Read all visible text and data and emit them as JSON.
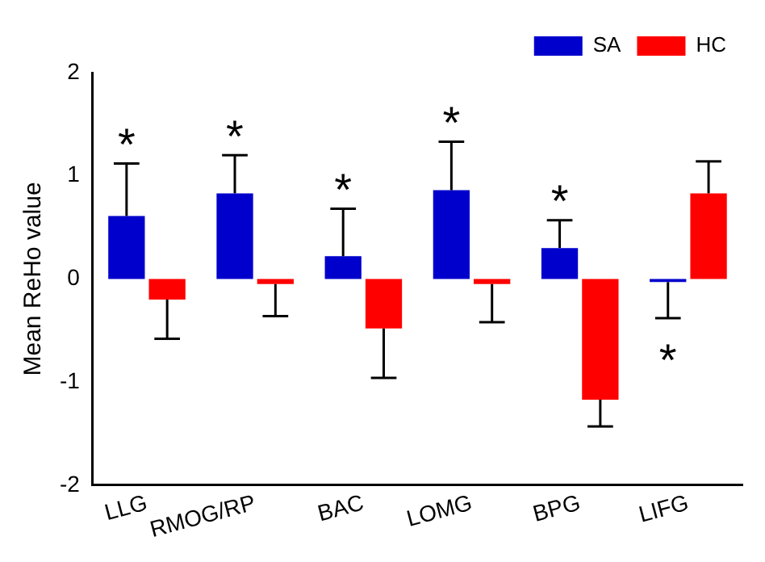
{
  "chart_data": {
    "type": "bar",
    "ylabel": "Mean ReHo value",
    "categories": [
      "LLG",
      "RMOG/RP",
      "BAC",
      "LOMG",
      "BPG",
      "LIFG"
    ],
    "series": [
      {
        "name": "SA",
        "color": "#0000cc",
        "values": [
          0.61,
          0.83,
          0.22,
          0.86,
          0.3,
          -0.03
        ],
        "errors": [
          [
            0.61,
            1.12
          ],
          [
            0.83,
            1.2
          ],
          [
            0.22,
            0.68
          ],
          [
            0.86,
            1.33
          ],
          [
            0.3,
            0.57
          ],
          [
            -0.38,
            -0.03
          ]
        ]
      },
      {
        "name": "HC",
        "color": "#ff0000",
        "values": [
          -0.2,
          -0.05,
          -0.48,
          -0.05,
          -1.17,
          0.83
        ],
        "errors": [
          [
            -0.58,
            -0.2
          ],
          [
            -0.36,
            -0.05
          ],
          [
            -0.96,
            -0.48
          ],
          [
            -0.42,
            -0.05
          ],
          [
            -1.43,
            -1.17
          ],
          [
            0.83,
            1.14
          ]
        ]
      }
    ],
    "ylim": [
      -2,
      2
    ],
    "yticks": [
      -2,
      -1,
      0,
      1,
      2
    ],
    "grid": false,
    "legend": "top right",
    "annotations": [
      "*",
      "*",
      "*",
      "*",
      "*",
      "*"
    ]
  }
}
